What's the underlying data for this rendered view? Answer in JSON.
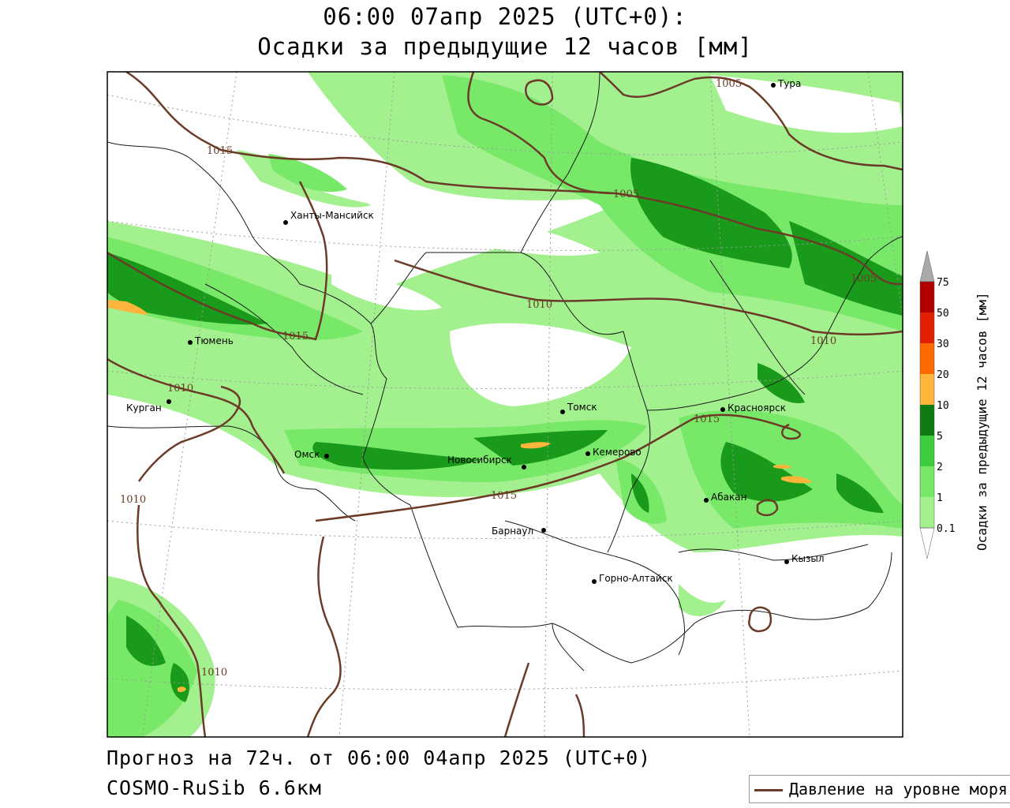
{
  "header": {
    "line1": "06:00 07апр 2025 (UTC+0):",
    "line2": "Осадки за предыдущие 12 часов [мм]"
  },
  "footer": {
    "forecast": "Прогноз на 72ч. от 06:00 04апр 2025 (UTC+0)",
    "model": "COSMO-RuSib 6.6км"
  },
  "legend": {
    "pressure_label": "Давление на уровне моря",
    "pressure_color": "#6b3b28"
  },
  "colorbar": {
    "title": "Осадки за предыдущие 12 часов [мм]",
    "levels": [
      "0.1",
      "1",
      "2",
      "5",
      "10",
      "20",
      "30",
      "50",
      "75"
    ],
    "colors": [
      "#ffffff",
      "#a3f08f",
      "#78e868",
      "#3dcc3d",
      "#1a9a1a",
      "#0f7a0f",
      "#ffb43c",
      "#ff6a00",
      "#e02000",
      "#b00000",
      "#a9a9a9"
    ]
  },
  "cities": [
    {
      "name": "Тура"
    },
    {
      "name": "Ханты-Мансийск"
    },
    {
      "name": "Тюмень"
    },
    {
      "name": "Курган"
    },
    {
      "name": "Омск"
    },
    {
      "name": "Новосибирск"
    },
    {
      "name": "Томск"
    },
    {
      "name": "Кемерово"
    },
    {
      "name": "Красноярск"
    },
    {
      "name": "Абакан"
    },
    {
      "name": "Барнаул"
    },
    {
      "name": "Горно-Алтайск"
    },
    {
      "name": "Кызыл"
    }
  ],
  "isobar_labels": [
    "1005",
    "1015",
    "1005",
    "1010",
    "1015",
    "1010",
    "1005",
    "1010",
    "1015",
    "1015",
    "1010",
    "1010"
  ]
}
